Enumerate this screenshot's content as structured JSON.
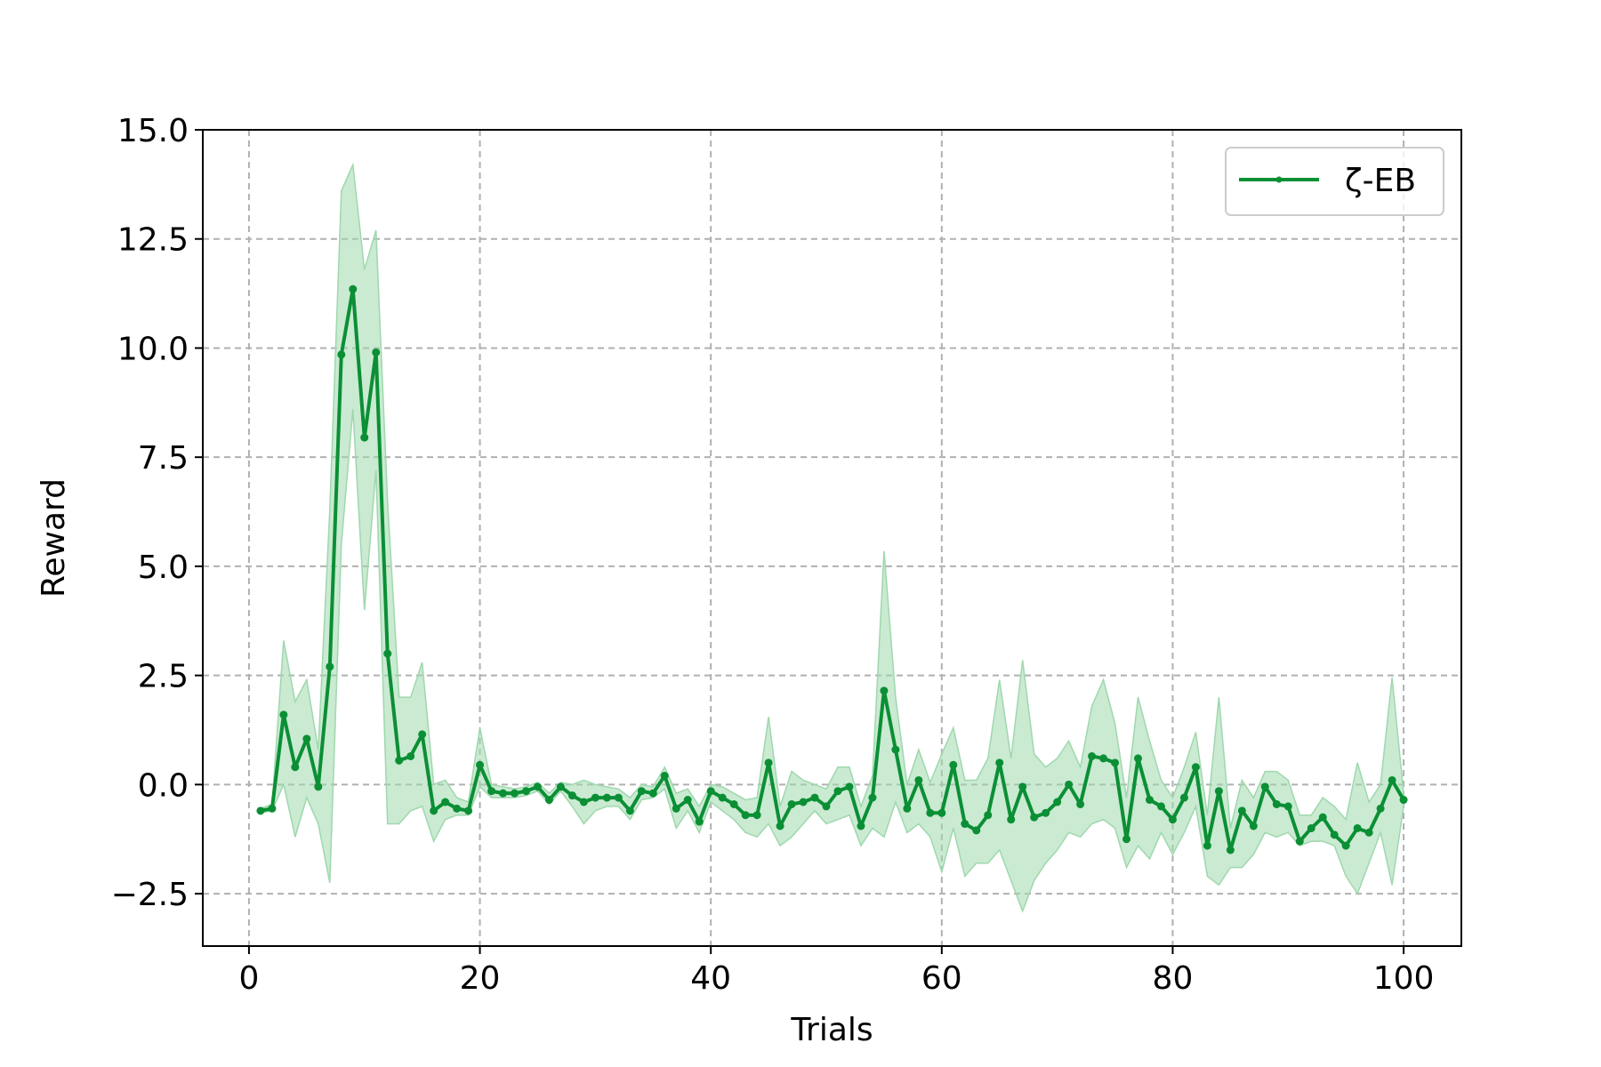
{
  "chart_data": {
    "type": "line",
    "title": "",
    "xlabel": "Trials",
    "ylabel": "Reward",
    "xlim": [
      -4,
      105
    ],
    "ylim": [
      -3.7,
      15.0
    ],
    "grid": true,
    "legend_position": "top-right",
    "x_ticks": [
      0,
      20,
      40,
      60,
      80,
      100
    ],
    "x_tick_labels": [
      "0",
      "20",
      "40",
      "60",
      "80",
      "100"
    ],
    "y_ticks": [
      -2.5,
      0.0,
      2.5,
      5.0,
      7.5,
      10.0,
      12.5,
      15.0
    ],
    "y_tick_labels": [
      "−2.5",
      "0.0",
      "2.5",
      "5.0",
      "7.5",
      "10.0",
      "12.5",
      "15.0"
    ],
    "series": [
      {
        "name": "ζ-EB",
        "color": "#0b8f35",
        "band_color": "#9fd8ad",
        "x": [
          1,
          2,
          3,
          4,
          5,
          6,
          7,
          8,
          9,
          10,
          11,
          12,
          13,
          14,
          15,
          16,
          17,
          18,
          19,
          20,
          21,
          22,
          23,
          24,
          25,
          26,
          27,
          28,
          29,
          30,
          31,
          32,
          33,
          34,
          35,
          36,
          37,
          38,
          39,
          40,
          41,
          42,
          43,
          44,
          45,
          46,
          47,
          48,
          49,
          50,
          51,
          52,
          53,
          54,
          55,
          56,
          57,
          58,
          59,
          60,
          61,
          62,
          63,
          64,
          65,
          66,
          67,
          68,
          69,
          70,
          71,
          72,
          73,
          74,
          75,
          76,
          77,
          78,
          79,
          80,
          81,
          82,
          83,
          84,
          85,
          86,
          87,
          88,
          89,
          90,
          91,
          92,
          93,
          94,
          95,
          96,
          97,
          98,
          99,
          100
        ],
        "values": [
          -0.6,
          -0.55,
          1.6,
          0.4,
          1.05,
          -0.05,
          2.7,
          9.85,
          11.35,
          7.95,
          9.9,
          3.0,
          0.55,
          0.65,
          1.15,
          -0.6,
          -0.4,
          -0.55,
          -0.6,
          0.45,
          -0.15,
          -0.2,
          -0.2,
          -0.15,
          -0.05,
          -0.35,
          -0.05,
          -0.25,
          -0.4,
          -0.3,
          -0.3,
          -0.3,
          -0.6,
          -0.15,
          -0.2,
          0.2,
          -0.55,
          -0.35,
          -0.85,
          -0.15,
          -0.3,
          -0.45,
          -0.7,
          -0.7,
          0.5,
          -0.95,
          -0.45,
          -0.4,
          -0.3,
          -0.5,
          -0.15,
          -0.05,
          -0.95,
          -0.3,
          2.15,
          0.8,
          -0.55,
          0.1,
          -0.65,
          -0.65,
          0.45,
          -0.9,
          -1.05,
          -0.7,
          0.5,
          -0.8,
          -0.05,
          -0.75,
          -0.65,
          -0.4,
          0.0,
          -0.45,
          0.65,
          0.6,
          0.5,
          -1.25,
          0.6,
          -0.35,
          -0.5,
          -0.8,
          -0.3,
          0.4,
          -1.4,
          -0.15,
          -1.5,
          -0.6,
          -0.95,
          -0.05,
          -0.45,
          -0.5,
          -1.3,
          -1.0,
          -0.75,
          -1.15,
          -1.4,
          -1.0,
          -1.1,
          -0.55,
          0.1,
          -0.35
        ],
        "lower": [
          -0.65,
          -0.6,
          0.0,
          -1.2,
          -0.3,
          -0.9,
          -2.25,
          5.5,
          8.6,
          4.0,
          7.2,
          -0.9,
          -0.9,
          -0.6,
          -0.5,
          -1.3,
          -0.8,
          -0.7,
          -0.7,
          -0.05,
          -0.3,
          -0.3,
          -0.3,
          -0.25,
          -0.15,
          -0.45,
          -0.15,
          -0.5,
          -0.9,
          -0.6,
          -0.5,
          -0.5,
          -0.8,
          -0.35,
          -0.3,
          -0.1,
          -1.0,
          -0.6,
          -1.1,
          -0.4,
          -0.6,
          -0.8,
          -1.1,
          -1.2,
          -0.9,
          -1.4,
          -1.2,
          -0.9,
          -0.6,
          -0.9,
          -0.8,
          -0.7,
          -1.4,
          -1.0,
          -1.2,
          -0.4,
          -1.1,
          -0.9,
          -1.2,
          -2.0,
          -1.0,
          -2.1,
          -1.8,
          -1.8,
          -1.5,
          -2.2,
          -2.9,
          -2.2,
          -1.8,
          -1.5,
          -1.1,
          -1.2,
          -0.9,
          -0.8,
          -1.0,
          -1.9,
          -1.4,
          -1.7,
          -1.1,
          -1.6,
          -1.1,
          -0.5,
          -2.1,
          -2.3,
          -1.9,
          -1.9,
          -1.6,
          -1.1,
          -1.2,
          -1.1,
          -1.4,
          -1.3,
          -1.3,
          -1.4,
          -2.1,
          -2.5,
          -1.8,
          -1.1,
          -2.3,
          -0.5
        ],
        "upper": [
          -0.55,
          -0.45,
          3.3,
          1.9,
          2.4,
          0.8,
          6.3,
          13.6,
          14.2,
          11.8,
          12.7,
          6.5,
          2.0,
          2.0,
          2.8,
          0.0,
          0.1,
          -0.3,
          -0.4,
          1.3,
          0.0,
          -0.05,
          -0.1,
          -0.05,
          0.05,
          -0.2,
          0.05,
          0.0,
          0.1,
          0.0,
          -0.05,
          -0.1,
          -0.3,
          0.0,
          -0.05,
          0.4,
          -0.2,
          -0.1,
          -0.5,
          0.0,
          -0.05,
          -0.2,
          -0.35,
          -0.3,
          1.55,
          -0.5,
          0.3,
          0.1,
          0.0,
          -0.1,
          0.4,
          0.4,
          -0.5,
          0.2,
          5.35,
          2.0,
          0.0,
          0.8,
          0.05,
          0.7,
          1.3,
          0.1,
          0.1,
          0.6,
          2.4,
          0.6,
          2.85,
          0.7,
          0.4,
          0.6,
          1.0,
          0.4,
          1.8,
          2.4,
          1.4,
          -0.3,
          2.0,
          1.0,
          0.1,
          -0.3,
          0.4,
          1.2,
          -0.7,
          2.0,
          -1.0,
          0.1,
          -0.3,
          0.3,
          0.3,
          0.1,
          -0.7,
          -0.7,
          -0.3,
          -0.5,
          -0.8,
          0.5,
          -0.4,
          0.0,
          2.45,
          -0.2
        ]
      }
    ]
  }
}
